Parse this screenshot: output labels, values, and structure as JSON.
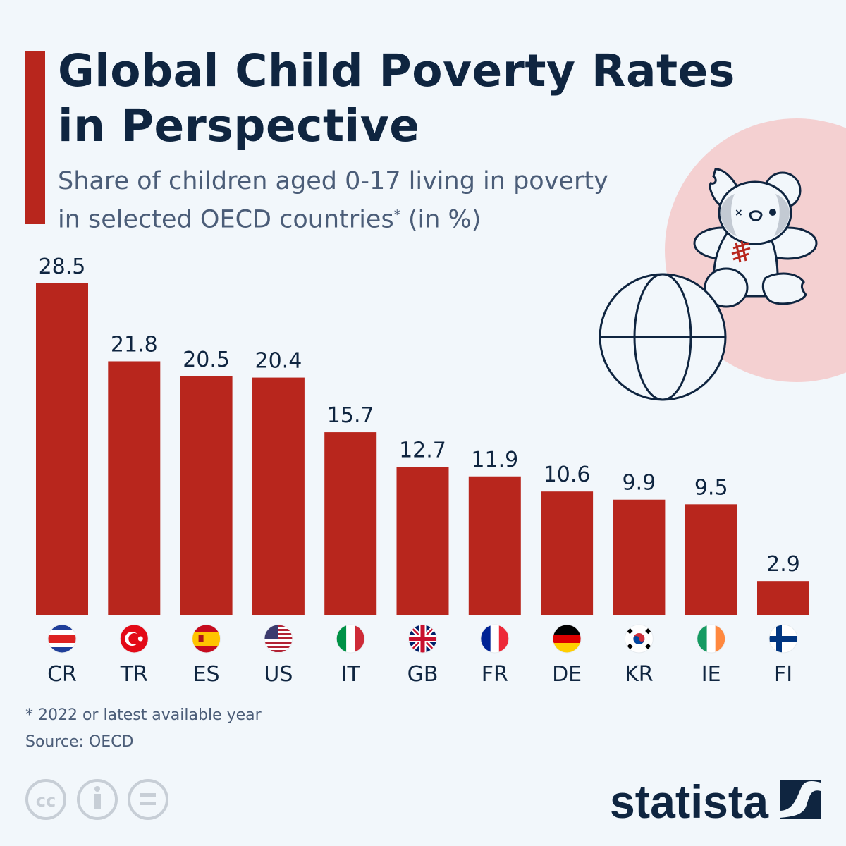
{
  "header": {
    "title_line1": "Global Child Poverty Rates",
    "title_line2": "in Perspective",
    "subtitle_line1": "Share of children aged 0-17 living in poverty",
    "subtitle_line2": "in selected OECD countries",
    "subtitle_asterisk": "*",
    "subtitle_unit": " (in %)"
  },
  "chart_data": {
    "type": "bar",
    "title": "Global Child Poverty Rates in Perspective",
    "subtitle": "Share of children aged 0-17 living in poverty in selected OECD countries* (in %)",
    "categories": [
      "CR",
      "TR",
      "ES",
      "US",
      "IT",
      "GB",
      "FR",
      "DE",
      "KR",
      "IE",
      "FI"
    ],
    "values": [
      28.5,
      21.8,
      20.5,
      20.4,
      15.7,
      12.7,
      11.9,
      10.6,
      9.9,
      9.5,
      2.9
    ],
    "labels": [
      "28.5",
      "21.8",
      "20.5",
      "20.4",
      "15.7",
      "12.7",
      "11.9",
      "10.6",
      "9.9",
      "9.5",
      "2.9"
    ],
    "ylim": [
      0,
      28.5
    ],
    "grid": false,
    "bar_color": "#b8261d",
    "xlabel": "",
    "ylabel": ""
  },
  "footer": {
    "note": "* 2022 or latest available year",
    "source": "Source: OECD",
    "license_icons": [
      "cc-icon",
      "attribution-icon",
      "no-derivatives-icon"
    ],
    "brand": "statista"
  },
  "colors": {
    "accent": "#b8261d",
    "text": "#0f2540",
    "background": "#f2f7fb",
    "circle": "#f4d0d1"
  }
}
